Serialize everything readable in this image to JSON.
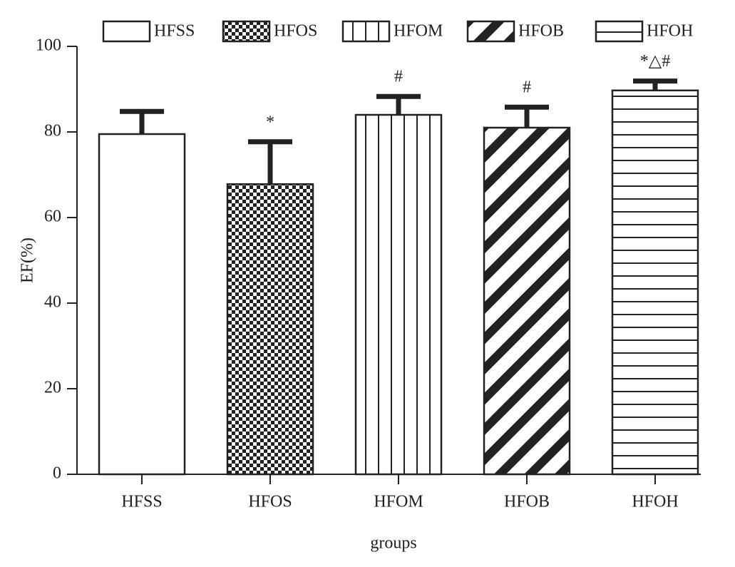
{
  "chart_data": {
    "type": "bar",
    "categories": [
      "HFSS",
      "HFOS",
      "HFOM",
      "HFOB",
      "HFOH"
    ],
    "values": [
      79.5,
      67.8,
      84,
      81,
      89.7
    ],
    "errors": [
      5.3,
      9.9,
      4.3,
      4.8,
      2.2
    ],
    "annotations": [
      null,
      "*",
      "#",
      "#",
      "*△#"
    ],
    "patterns": [
      "none",
      "checker",
      "vertical",
      "diagonal",
      "horizontal"
    ],
    "color": "#222222",
    "xlabel": "groups",
    "ylabel": "EF(%)",
    "ylim": [
      0,
      100
    ],
    "yticks": [
      0,
      20,
      40,
      60,
      80,
      100
    ],
    "legend": "top"
  }
}
